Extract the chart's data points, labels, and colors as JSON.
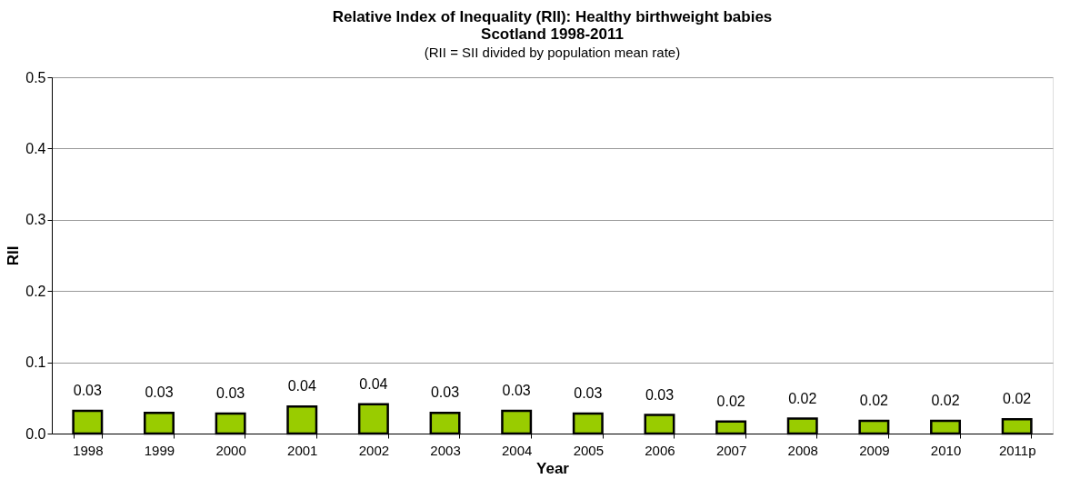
{
  "chart_data": {
    "type": "bar",
    "title": "Relative Index of Inequality (RII): Healthy birthweight babies",
    "subtitle": "Scotland 1998-2011",
    "annotations": [
      "(RII = SII divided by population mean rate)"
    ],
    "xlabel": "Year",
    "ylabel": "RII",
    "categories": [
      "1998",
      "1999",
      "2000",
      "2001",
      "2002",
      "2003",
      "2004",
      "2005",
      "2006",
      "2007",
      "2008",
      "2009",
      "2010",
      "2011p"
    ],
    "values": [
      0.032,
      0.029,
      0.028,
      0.038,
      0.041,
      0.029,
      0.032,
      0.028,
      0.026,
      0.017,
      0.021,
      0.018,
      0.018,
      0.02
    ],
    "value_labels": [
      "0.03",
      "0.03",
      "0.03",
      "0.04",
      "0.04",
      "0.03",
      "0.03",
      "0.03",
      "0.03",
      "0.02",
      "0.02",
      "0.02",
      "0.02",
      "0.02"
    ],
    "color": "#99cc00",
    "ylim": [
      0,
      0.5
    ],
    "yticks": [
      {
        "value": 0,
        "label": "0.0"
      },
      {
        "value": 0.1,
        "label": "0.1"
      },
      {
        "value": 0.2,
        "label": "0.2"
      },
      {
        "value": 0.3,
        "label": "0.3"
      },
      {
        "value": 0.4,
        "label": "0.4"
      },
      {
        "value": 0.5,
        "label": "0.5"
      }
    ],
    "grid": "y"
  }
}
